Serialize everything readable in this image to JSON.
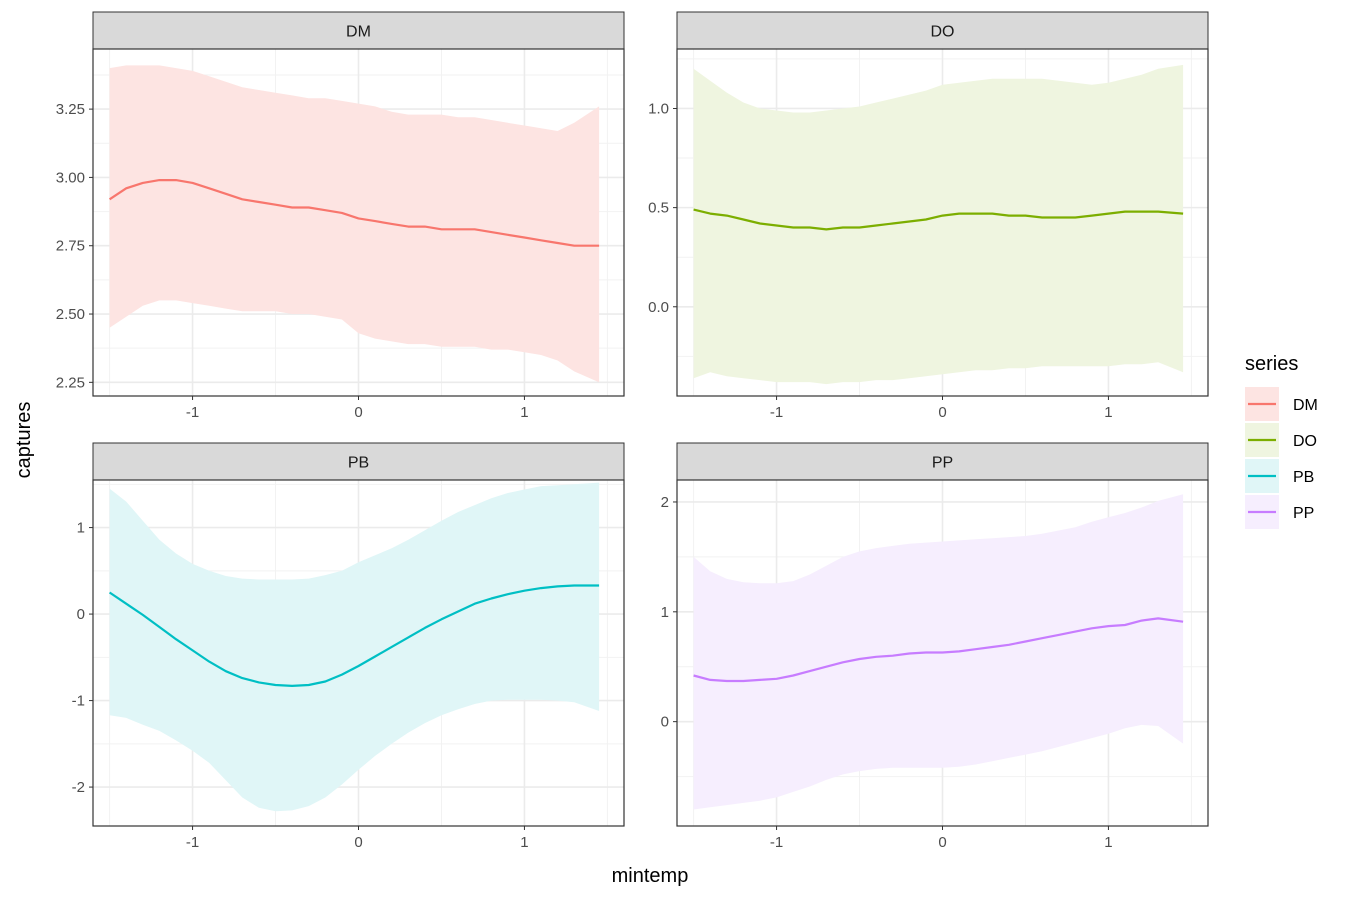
{
  "chart_data": {
    "type": "line",
    "xlabel": "mintemp",
    "ylabel": "captures",
    "legend": {
      "title": "series",
      "position": "right"
    },
    "grid": true,
    "x_ticks": [
      -1,
      0,
      1
    ],
    "x_range": [
      -1.6,
      1.6
    ],
    "panels": [
      {
        "name": "DM",
        "color": "#F8766D",
        "ribbon_color": "#FDE4E2",
        "ylim": [
          2.2,
          3.47
        ],
        "y_ticks": [
          2.25,
          2.5,
          2.75,
          3.0,
          3.25
        ],
        "y_tick_labels": [
          "2.25",
          "2.50",
          "2.75",
          "3.00",
          "3.25"
        ],
        "x": [
          -1.5,
          -1.4,
          -1.3,
          -1.2,
          -1.1,
          -1.0,
          -0.9,
          -0.8,
          -0.7,
          -0.6,
          -0.5,
          -0.4,
          -0.3,
          -0.2,
          -0.1,
          0.0,
          0.1,
          0.2,
          0.3,
          0.4,
          0.5,
          0.6,
          0.7,
          0.8,
          0.9,
          1.0,
          1.1,
          1.2,
          1.3,
          1.45
        ],
        "mean": [
          2.92,
          2.96,
          2.98,
          2.99,
          2.99,
          2.98,
          2.96,
          2.94,
          2.92,
          2.91,
          2.9,
          2.89,
          2.89,
          2.88,
          2.87,
          2.85,
          2.84,
          2.83,
          2.82,
          2.82,
          2.81,
          2.81,
          2.81,
          2.8,
          2.79,
          2.78,
          2.77,
          2.76,
          2.75,
          2.75
        ],
        "lower": [
          2.45,
          2.49,
          2.53,
          2.55,
          2.55,
          2.54,
          2.53,
          2.52,
          2.51,
          2.51,
          2.51,
          2.5,
          2.5,
          2.49,
          2.48,
          2.43,
          2.41,
          2.4,
          2.39,
          2.39,
          2.38,
          2.38,
          2.38,
          2.37,
          2.37,
          2.36,
          2.35,
          2.33,
          2.29,
          2.25
        ],
        "upper": [
          3.4,
          3.41,
          3.41,
          3.41,
          3.4,
          3.39,
          3.37,
          3.35,
          3.33,
          3.32,
          3.31,
          3.3,
          3.29,
          3.29,
          3.28,
          3.27,
          3.26,
          3.24,
          3.23,
          3.23,
          3.23,
          3.22,
          3.22,
          3.21,
          3.2,
          3.19,
          3.18,
          3.17,
          3.2,
          3.26
        ]
      },
      {
        "name": "DO",
        "color": "#7CAE00",
        "ribbon_color": "#EFF5E0",
        "ylim": [
          -0.45,
          1.3
        ],
        "y_ticks": [
          0.0,
          0.5,
          1.0
        ],
        "y_tick_labels": [
          "0.0",
          "0.5",
          "1.0"
        ],
        "x": [
          -1.5,
          -1.4,
          -1.3,
          -1.2,
          -1.1,
          -1.0,
          -0.9,
          -0.8,
          -0.7,
          -0.6,
          -0.5,
          -0.4,
          -0.3,
          -0.2,
          -0.1,
          0.0,
          0.1,
          0.2,
          0.3,
          0.4,
          0.5,
          0.6,
          0.7,
          0.8,
          0.9,
          1.0,
          1.1,
          1.2,
          1.3,
          1.45
        ],
        "mean": [
          0.49,
          0.47,
          0.46,
          0.44,
          0.42,
          0.41,
          0.4,
          0.4,
          0.39,
          0.4,
          0.4,
          0.41,
          0.42,
          0.43,
          0.44,
          0.46,
          0.47,
          0.47,
          0.47,
          0.46,
          0.46,
          0.45,
          0.45,
          0.45,
          0.46,
          0.47,
          0.48,
          0.48,
          0.48,
          0.47
        ],
        "lower": [
          -0.36,
          -0.33,
          -0.35,
          -0.36,
          -0.37,
          -0.38,
          -0.38,
          -0.38,
          -0.39,
          -0.38,
          -0.38,
          -0.37,
          -0.37,
          -0.36,
          -0.35,
          -0.34,
          -0.33,
          -0.32,
          -0.32,
          -0.31,
          -0.31,
          -0.3,
          -0.3,
          -0.3,
          -0.3,
          -0.3,
          -0.29,
          -0.29,
          -0.28,
          -0.33
        ],
        "upper": [
          1.2,
          1.14,
          1.08,
          1.03,
          1.0,
          0.99,
          0.98,
          0.98,
          0.99,
          1.0,
          1.01,
          1.03,
          1.05,
          1.07,
          1.09,
          1.12,
          1.13,
          1.14,
          1.15,
          1.15,
          1.15,
          1.15,
          1.14,
          1.13,
          1.12,
          1.13,
          1.15,
          1.17,
          1.2,
          1.22
        ]
      },
      {
        "name": "PB",
        "color": "#00BFC4",
        "ribbon_color": "#E0F6F7",
        "ylim": [
          -2.45,
          1.55
        ],
        "y_ticks": [
          -2,
          -1,
          0,
          1
        ],
        "y_tick_labels": [
          "-2",
          "-1",
          "0",
          "1"
        ],
        "x": [
          -1.5,
          -1.4,
          -1.3,
          -1.2,
          -1.1,
          -1.0,
          -0.9,
          -0.8,
          -0.7,
          -0.6,
          -0.5,
          -0.4,
          -0.3,
          -0.2,
          -0.1,
          0.0,
          0.1,
          0.2,
          0.3,
          0.4,
          0.5,
          0.6,
          0.7,
          0.8,
          0.9,
          1.0,
          1.1,
          1.2,
          1.3,
          1.45
        ],
        "mean": [
          0.25,
          0.12,
          -0.01,
          -0.15,
          -0.29,
          -0.42,
          -0.55,
          -0.66,
          -0.74,
          -0.79,
          -0.82,
          -0.83,
          -0.82,
          -0.78,
          -0.7,
          -0.6,
          -0.49,
          -0.38,
          -0.27,
          -0.16,
          -0.06,
          0.03,
          0.12,
          0.18,
          0.23,
          0.27,
          0.3,
          0.32,
          0.33,
          0.33
        ],
        "lower": [
          -1.17,
          -1.2,
          -1.28,
          -1.35,
          -1.46,
          -1.58,
          -1.72,
          -1.92,
          -2.12,
          -2.24,
          -2.28,
          -2.27,
          -2.22,
          -2.12,
          -1.97,
          -1.8,
          -1.64,
          -1.5,
          -1.37,
          -1.26,
          -1.17,
          -1.1,
          -1.04,
          -1.0,
          -0.99,
          -0.99,
          -0.99,
          -1.0,
          -1.02,
          -1.12
        ],
        "upper": [
          1.45,
          1.3,
          1.08,
          0.86,
          0.7,
          0.58,
          0.5,
          0.44,
          0.41,
          0.4,
          0.4,
          0.4,
          0.41,
          0.45,
          0.5,
          0.6,
          0.68,
          0.76,
          0.86,
          0.97,
          1.08,
          1.18,
          1.26,
          1.34,
          1.4,
          1.44,
          1.48,
          1.49,
          1.5,
          1.52
        ]
      },
      {
        "name": "PP",
        "color": "#C77CFF",
        "ribbon_color": "#F6EEFE",
        "ylim": [
          -0.95,
          2.2
        ],
        "y_ticks": [
          0,
          1,
          2
        ],
        "y_tick_labels": [
          "0",
          "1",
          "2"
        ],
        "x": [
          -1.5,
          -1.4,
          -1.3,
          -1.2,
          -1.1,
          -1.0,
          -0.9,
          -0.8,
          -0.7,
          -0.6,
          -0.5,
          -0.4,
          -0.3,
          -0.2,
          -0.1,
          0.0,
          0.1,
          0.2,
          0.3,
          0.4,
          0.5,
          0.6,
          0.7,
          0.8,
          0.9,
          1.0,
          1.1,
          1.2,
          1.3,
          1.45
        ],
        "mean": [
          0.42,
          0.38,
          0.37,
          0.37,
          0.38,
          0.39,
          0.42,
          0.46,
          0.5,
          0.54,
          0.57,
          0.59,
          0.6,
          0.62,
          0.63,
          0.63,
          0.64,
          0.66,
          0.68,
          0.7,
          0.73,
          0.76,
          0.79,
          0.82,
          0.85,
          0.87,
          0.88,
          0.92,
          0.94,
          0.91
        ],
        "lower": [
          -0.8,
          -0.78,
          -0.76,
          -0.74,
          -0.72,
          -0.69,
          -0.64,
          -0.59,
          -0.53,
          -0.48,
          -0.45,
          -0.43,
          -0.42,
          -0.42,
          -0.42,
          -0.42,
          -0.41,
          -0.39,
          -0.36,
          -0.33,
          -0.3,
          -0.27,
          -0.23,
          -0.19,
          -0.15,
          -0.11,
          -0.06,
          -0.03,
          -0.04,
          -0.2
        ],
        "upper": [
          1.5,
          1.37,
          1.3,
          1.27,
          1.26,
          1.26,
          1.28,
          1.34,
          1.42,
          1.5,
          1.55,
          1.58,
          1.6,
          1.62,
          1.63,
          1.64,
          1.65,
          1.66,
          1.67,
          1.68,
          1.69,
          1.71,
          1.74,
          1.77,
          1.82,
          1.86,
          1.9,
          1.95,
          2.01,
          2.07
        ]
      }
    ]
  }
}
